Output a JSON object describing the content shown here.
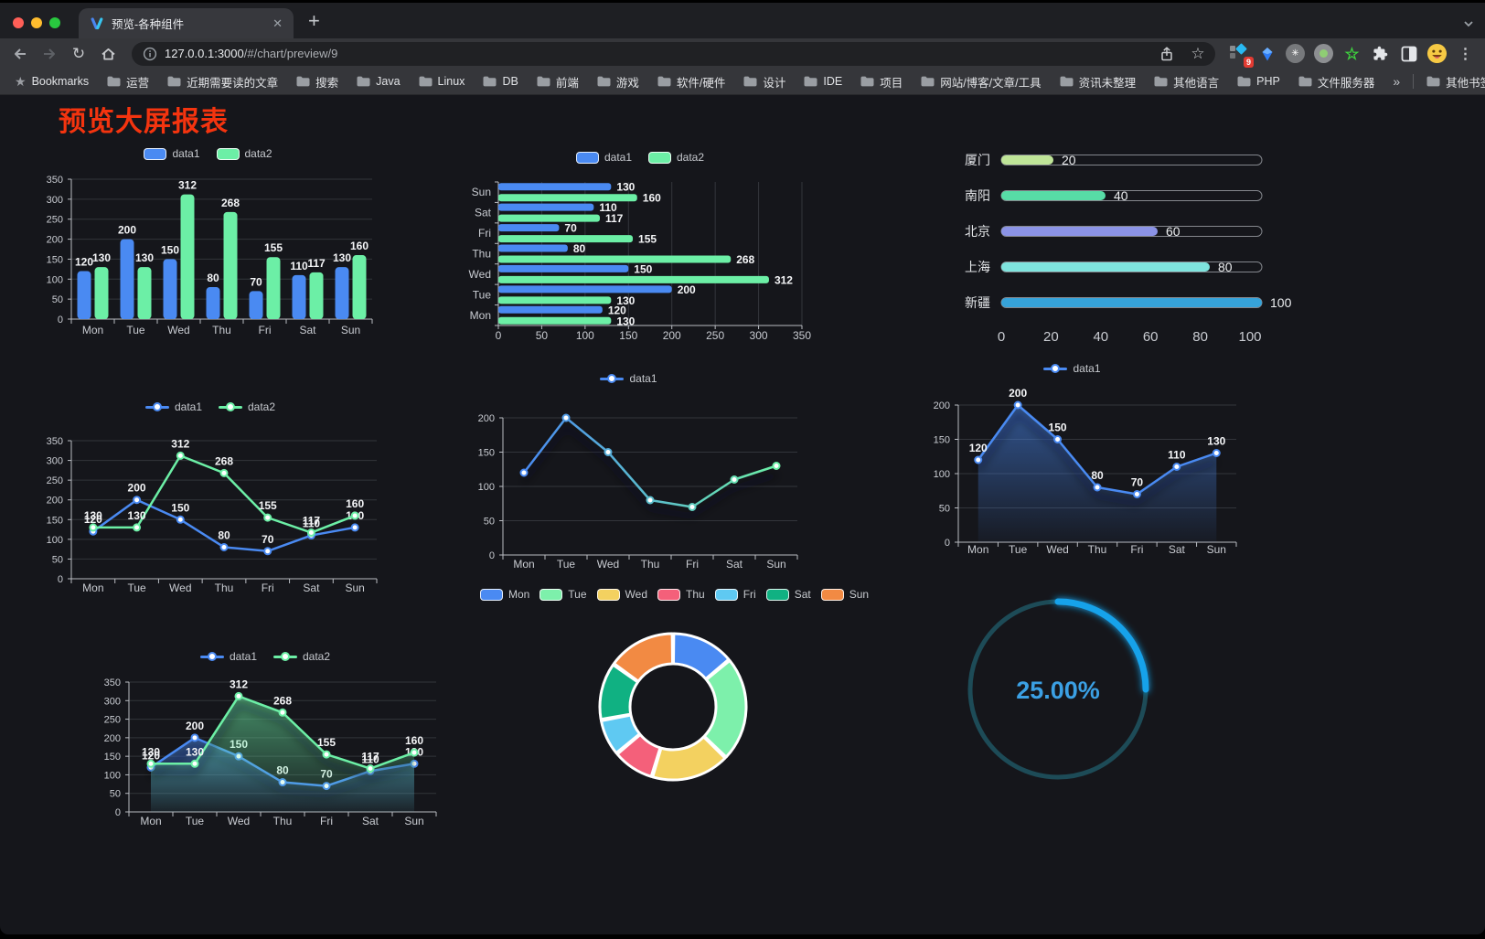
{
  "browser": {
    "tab": {
      "title": "预览-各种组件"
    },
    "glyphs": {
      "close": "✕",
      "new_tab": "+",
      "star": "☆",
      "reload": "↻",
      "menu": "⋮",
      "asterisk": "✳"
    },
    "address": {
      "url_host": "127.0.0.1:3000",
      "url_path": "/#/chart/preview/9"
    },
    "extensions_badge": "9",
    "bookmarks_bar": {
      "bookmarks_label": "Bookmarks",
      "folders": [
        "运营",
        "近期需要读的文章",
        "搜索",
        "Java",
        "Linux",
        "DB",
        "前端",
        "游戏",
        "软件/硬件",
        "设计",
        "IDE",
        "项目",
        "网站/博客/文章/工具",
        "资讯未整理",
        "其他语言",
        "PHP",
        "文件服务器"
      ],
      "overflow": "»",
      "other_bookmarks": "其他书签"
    }
  },
  "page": {
    "title": "预览大屏报表",
    "title_color": "#f4340f",
    "background": "#15161b"
  },
  "chart_data": [
    {
      "id": "bar-vertical",
      "type": "bar",
      "legend_position": "top",
      "grid": true,
      "value_labels": true,
      "categories": [
        "Mon",
        "Tue",
        "Wed",
        "Thu",
        "Fri",
        "Sat",
        "Sun"
      ],
      "series": [
        {
          "name": "data1",
          "color": "#4a8af2",
          "values": [
            120,
            200,
            150,
            80,
            70,
            110,
            130
          ]
        },
        {
          "name": "data2",
          "color": "#6cefa6",
          "values": [
            130,
            130,
            312,
            268,
            155,
            117,
            160
          ]
        }
      ],
      "ylim": [
        0,
        350
      ],
      "ytick": 50
    },
    {
      "id": "bar-horizontal",
      "type": "bar",
      "orientation": "horizontal",
      "legend_position": "top",
      "grid": true,
      "value_labels": true,
      "categories_displayed_bottom_to_top": true,
      "categories": [
        "Mon",
        "Tue",
        "Wed",
        "Thu",
        "Fri",
        "Sat",
        "Sun"
      ],
      "series": [
        {
          "name": "data1",
          "color": "#4a8af2",
          "values": [
            120,
            200,
            150,
            80,
            70,
            110,
            130
          ]
        },
        {
          "name": "data2",
          "color": "#6cefa6",
          "values": [
            130,
            130,
            312,
            268,
            155,
            117,
            160
          ]
        }
      ],
      "xlim": [
        0,
        350
      ],
      "xtick": 50
    },
    {
      "id": "progress",
      "type": "bar",
      "orientation": "horizontal",
      "style": "capsule-progress",
      "categories": [
        "厦门",
        "南阳",
        "北京",
        "上海",
        "新疆"
      ],
      "values": [
        20,
        40,
        60,
        80,
        100
      ],
      "colors": [
        "#bfe598",
        "#57dca6",
        "#8b93e6",
        "#7fe4de",
        "#36a3da"
      ],
      "xlim": [
        0,
        100
      ],
      "xticks": [
        0,
        20,
        40,
        60,
        80,
        100
      ]
    },
    {
      "id": "line-basic",
      "type": "line",
      "legend_position": "top",
      "grid": true,
      "value_labels": true,
      "categories": [
        "Mon",
        "Tue",
        "Wed",
        "Thu",
        "Fri",
        "Sat",
        "Sun"
      ],
      "series": [
        {
          "name": "data1",
          "color": "#4a8af2",
          "values": [
            120,
            200,
            150,
            80,
            70,
            110,
            130
          ]
        },
        {
          "name": "data2",
          "color": "#6cefa6",
          "values": [
            130,
            130,
            312,
            268,
            155,
            117,
            160
          ]
        }
      ],
      "ylim": [
        0,
        350
      ],
      "ytick": 50
    },
    {
      "id": "line-gradient",
      "type": "line",
      "legend_position": "top",
      "grid": true,
      "value_labels": false,
      "shadow": true,
      "categories": [
        "Mon",
        "Tue",
        "Wed",
        "Thu",
        "Fri",
        "Sat",
        "Sun"
      ],
      "series": [
        {
          "name": "data1",
          "color_start": "#4a8af2",
          "color_end": "#6cefa6",
          "values": [
            120,
            200,
            150,
            80,
            70,
            110,
            130
          ]
        }
      ],
      "ylim": [
        0,
        200
      ],
      "ytick": 50
    },
    {
      "id": "area-single",
      "type": "area",
      "legend_position": "top",
      "grid": true,
      "value_labels": true,
      "shadow": true,
      "categories": [
        "Mon",
        "Tue",
        "Wed",
        "Thu",
        "Fri",
        "Sat",
        "Sun"
      ],
      "series": [
        {
          "name": "data1",
          "color": "#4a8af2",
          "values": [
            120,
            200,
            150,
            80,
            70,
            110,
            130
          ]
        }
      ],
      "ylim": [
        0,
        200
      ],
      "ytick": 50
    },
    {
      "id": "area-double",
      "type": "area",
      "legend_position": "top",
      "grid": true,
      "value_labels": true,
      "shadow": true,
      "categories": [
        "Mon",
        "Tue",
        "Wed",
        "Thu",
        "Fri",
        "Sat",
        "Sun"
      ],
      "series": [
        {
          "name": "data1",
          "color": "#4a8af2",
          "values": [
            120,
            200,
            150,
            80,
            70,
            110,
            130
          ]
        },
        {
          "name": "data2",
          "color": "#6cefa6",
          "values": [
            130,
            130,
            312,
            268,
            155,
            117,
            160
          ]
        }
      ],
      "ylim": [
        0,
        350
      ],
      "ytick": 50
    },
    {
      "id": "donut",
      "type": "pie",
      "legend_position": "top",
      "inner_radius_ratio": 0.59,
      "slices": [
        {
          "label": "Mon",
          "value": 120,
          "color": "#4a8af2"
        },
        {
          "label": "Tue",
          "value": 200,
          "color": "#7df0ab"
        },
        {
          "label": "Wed",
          "value": 150,
          "color": "#f3d160"
        },
        {
          "label": "Thu",
          "value": 80,
          "color": "#f4607a"
        },
        {
          "label": "Fri",
          "value": 70,
          "color": "#5fc9f2"
        },
        {
          "label": "Sat",
          "value": 110,
          "color": "#10b182"
        },
        {
          "label": "Sun",
          "value": 130,
          "color": "#f28a43"
        }
      ]
    },
    {
      "id": "gauge",
      "type": "gauge",
      "value": 25,
      "min": 0,
      "max": 100,
      "display": "25.00%",
      "color": "#17a2ea",
      "track_color": "#1d4b57",
      "text_color": "#3ba0e4"
    }
  ]
}
